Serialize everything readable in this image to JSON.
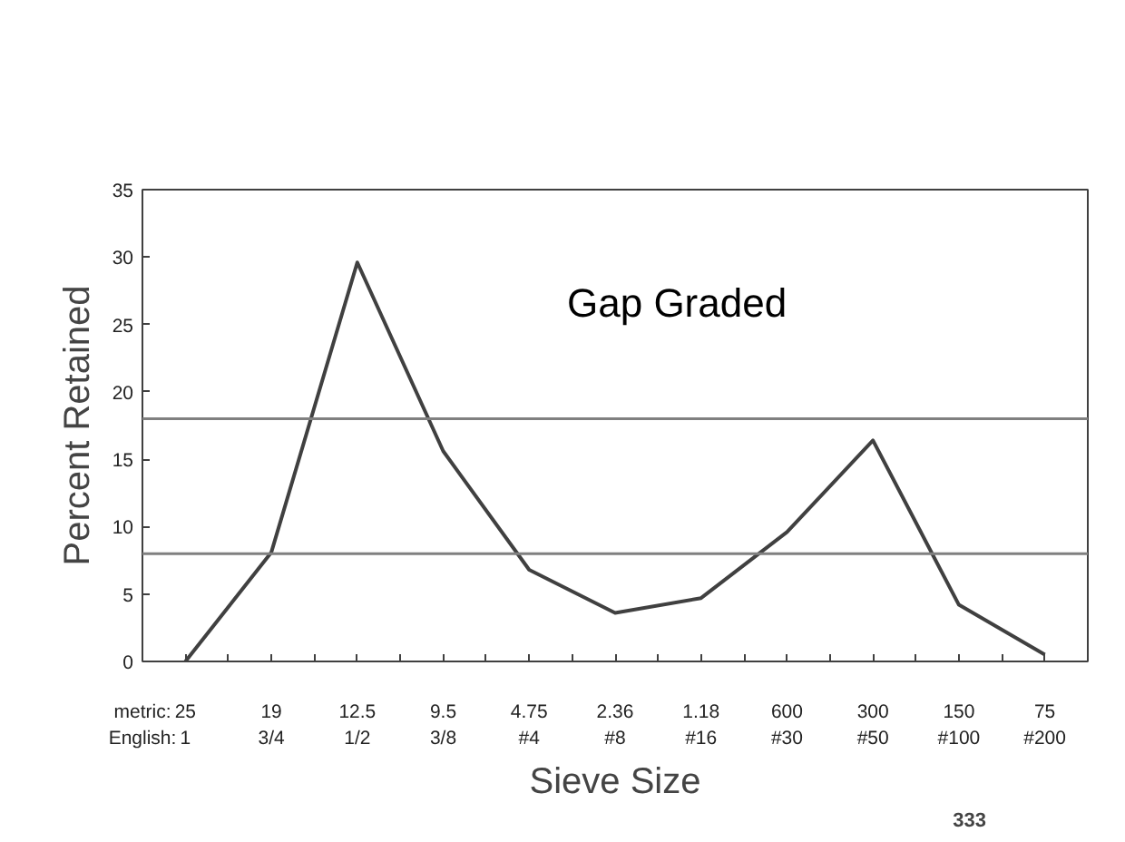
{
  "chart_data": {
    "type": "line",
    "xlabel": "Sieve Size",
    "ylabel": "Percent Retained",
    "categories": [
      "25\n1",
      "19\n3/4",
      "12.5\n1/2",
      "9.5\n3/8",
      "4.75\n#4",
      "2.36\n#8",
      "1.18\n#16",
      "600\n#30",
      "300\n#50",
      "150\n#100",
      "75\n#200"
    ],
    "series": [
      {
        "color": "#404040",
        "values": [
          0,
          8.1,
          29.6,
          15.6,
          6.8,
          3.6,
          4.7,
          9.6,
          16.4,
          4.2,
          0.5
        ]
      }
    ],
    "ylim": [
      0,
      35
    ],
    "yticks": [
      0,
      5,
      10,
      15,
      20,
      25,
      30,
      35
    ],
    "ref_lines": [
      {
        "axis": "y",
        "value": 18,
        "color": "#808080"
      },
      {
        "axis": "y",
        "value": 8,
        "color": "#808080"
      }
    ],
    "annotations": [
      "Gap Graded",
      "metric:\nEnglish:",
      "333"
    ],
    "grid": false,
    "marker": "none",
    "line_style": "solid"
  }
}
